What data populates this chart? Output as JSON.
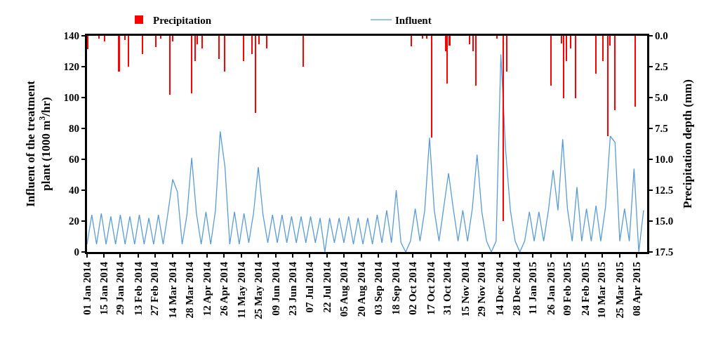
{
  "chart_data": {
    "type": "line",
    "ylabel": "Influent of the treatment plant (1000 m$^{3}$/hr)",
    "y2label": "Precipitation depth (mm)",
    "legend": "top",
    "grid": false,
    "marker": "none",
    "line_style": "solid",
    "xlim": [
      "2014-01-01",
      "2015-04-17"
    ],
    "ylim": [
      0,
      140
    ],
    "yticks": [
      0,
      20,
      40,
      60,
      80,
      100,
      120,
      140
    ],
    "y2lim": [
      17.5,
      0
    ],
    "y2ticks": [
      {
        "value": 0,
        "label": "0.0"
      },
      2.5,
      {
        "value": 5,
        "label": "5.0"
      },
      7.5,
      {
        "value": 10,
        "label": "10.0"
      },
      12.5,
      {
        "value": 15,
        "label": "15.0"
      },
      17.5
    ],
    "xticks": [
      {
        "value": "2014-01-01",
        "label": "01 Jan 2014"
      },
      {
        "value": "2014-01-15",
        "label": "15 Jan 2014"
      },
      {
        "value": "2014-01-29",
        "label": "29 Jan 2014"
      },
      {
        "value": "2014-02-13",
        "label": "13 Feb 2014"
      },
      {
        "value": "2014-02-27",
        "label": "27 Feb 2014"
      },
      {
        "value": "2014-03-14",
        "label": "14 Mar 2014"
      },
      {
        "value": "2014-03-28",
        "label": "28 Mar 2014"
      },
      {
        "value": "2014-04-12",
        "label": "12 Apr 2014"
      },
      {
        "value": "2014-04-26",
        "label": "26 Apr 2014"
      },
      {
        "value": "2014-05-11",
        "label": "11 May 2014"
      },
      {
        "value": "2014-05-25",
        "label": "25 May 2014"
      },
      {
        "value": "2014-06-09",
        "label": "09 Jun 2014"
      },
      {
        "value": "2014-06-23",
        "label": "23 Jun 2014"
      },
      {
        "value": "2014-07-07",
        "label": "07 Jul 2014"
      },
      {
        "value": "2014-07-22",
        "label": "22 Jul 2014"
      },
      {
        "value": "2014-08-05",
        "label": "05 Aug 2014"
      },
      {
        "value": "2014-08-20",
        "label": "20 Aug 2014"
      },
      {
        "value": "2014-09-03",
        "label": "03 Sep 2014"
      },
      {
        "value": "2014-09-18",
        "label": "18 Sep 2014"
      },
      {
        "value": "2014-10-02",
        "label": "02 Oct 2014"
      },
      {
        "value": "2014-10-17",
        "label": "17 Oct 2014"
      },
      {
        "value": "2014-10-31",
        "label": "31 Oct 2014"
      },
      {
        "value": "2014-11-15",
        "label": "15 Nov 2014"
      },
      {
        "value": "2014-11-29",
        "label": "29 Nov 2014"
      },
      {
        "value": "2014-12-14",
        "label": "14 Dec 2014"
      },
      {
        "value": "2014-12-28",
        "label": "28 Dec 2014"
      },
      {
        "value": "2015-01-11",
        "label": "11 Jan 2015"
      },
      {
        "value": "2015-01-26",
        "label": "26 Jan 2015"
      },
      {
        "value": "2015-02-09",
        "label": "09 Feb 2015"
      },
      {
        "value": "2015-02-24",
        "label": "24 Feb 2015"
      },
      {
        "value": "2015-03-10",
        "label": "10 Mar 2015"
      },
      {
        "value": "2015-03-25",
        "label": "25 Mar 2015"
      },
      {
        "value": "2015-04-08",
        "label": "08 Apr 2015"
      }
    ],
    "series": [
      {
        "name": "Precipitation",
        "type": "bar",
        "axis": "y2",
        "color": "#ff0000",
        "x": [
          "2014-01-02",
          "2014-01-11",
          "2014-01-16",
          "2014-01-28",
          "2014-02-02",
          "2014-02-05",
          "2014-02-17",
          "2014-02-28",
          "2014-03-04",
          "2014-03-12",
          "2014-03-14",
          "2014-03-30",
          "2014-04-02",
          "2014-04-04",
          "2014-04-08",
          "2014-04-22",
          "2014-04-27",
          "2014-05-13",
          "2014-05-20",
          "2014-05-23",
          "2014-05-26",
          "2014-06-01",
          "2014-07-02",
          "2014-10-01",
          "2014-10-10",
          "2014-10-14",
          "2014-10-18",
          "2014-10-30",
          "2014-10-31",
          "2014-11-02",
          "2014-11-19",
          "2014-11-22",
          "2014-11-24",
          "2014-12-12",
          "2014-12-17",
          "2014-12-20",
          "2015-01-26",
          "2015-02-04",
          "2015-02-06",
          "2015-02-08",
          "2015-02-12",
          "2015-02-16",
          "2015-03-05",
          "2015-03-11",
          "2015-03-15",
          "2015-03-17",
          "2015-03-21",
          "2015-04-07"
        ],
        "values": [
          1.1,
          0.2,
          0.45,
          2.9,
          0.35,
          2.5,
          1.5,
          0.9,
          0.25,
          4.75,
          0.45,
          4.65,
          2.05,
          0.7,
          1.05,
          1.85,
          2.9,
          2.05,
          1.5,
          6.25,
          0.7,
          1.05,
          2.5,
          0.85,
          0.25,
          0.25,
          8.25,
          1.25,
          3.85,
          0.8,
          0.7,
          1.25,
          4.05,
          0.25,
          15.0,
          2.9,
          4.05,
          0.65,
          5.05,
          2.05,
          1.05,
          5.05,
          3.05,
          2.05,
          8.1,
          0.8,
          6.05,
          5.75
        ]
      },
      {
        "name": "Influent",
        "axis": "y",
        "color": "#5b9bd5",
        "x": [
          "2014-01-01",
          "2014-01-05",
          "2014-01-09",
          "2014-01-13",
          "2014-01-17",
          "2014-01-21",
          "2014-01-25",
          "2014-01-29",
          "2014-02-02",
          "2014-02-06",
          "2014-02-10",
          "2014-02-14",
          "2014-02-18",
          "2014-02-22",
          "2014-02-26",
          "2014-03-02",
          "2014-03-06",
          "2014-03-10",
          "2014-03-14",
          "2014-03-18",
          "2014-03-22",
          "2014-03-26",
          "2014-03-30",
          "2014-04-03",
          "2014-04-07",
          "2014-04-11",
          "2014-04-15",
          "2014-04-19",
          "2014-04-23",
          "2014-04-27",
          "2014-05-01",
          "2014-05-05",
          "2014-05-09",
          "2014-05-13",
          "2014-05-17",
          "2014-05-21",
          "2014-05-25",
          "2014-05-29",
          "2014-06-02",
          "2014-06-06",
          "2014-06-10",
          "2014-06-14",
          "2014-06-18",
          "2014-06-22",
          "2014-06-26",
          "2014-06-30",
          "2014-07-04",
          "2014-07-08",
          "2014-07-12",
          "2014-07-16",
          "2014-07-20",
          "2014-07-24",
          "2014-07-28",
          "2014-08-01",
          "2014-08-05",
          "2014-08-09",
          "2014-08-13",
          "2014-08-17",
          "2014-08-21",
          "2014-08-25",
          "2014-08-29",
          "2014-09-02",
          "2014-09-06",
          "2014-09-10",
          "2014-09-14",
          "2014-09-18",
          "2014-09-22",
          "2014-09-26",
          "2014-09-30",
          "2014-10-04",
          "2014-10-08",
          "2014-10-12",
          "2014-10-16",
          "2014-10-20",
          "2014-10-24",
          "2014-10-28",
          "2014-11-01",
          "2014-11-05",
          "2014-11-09",
          "2014-11-13",
          "2014-11-17",
          "2014-11-21",
          "2014-11-25",
          "2014-11-29",
          "2014-12-03",
          "2014-12-07",
          "2014-12-11",
          "2014-12-15",
          "2014-12-19",
          "2014-12-23",
          "2014-12-27",
          "2014-12-31",
          "2015-01-04",
          "2015-01-08",
          "2015-01-12",
          "2015-01-16",
          "2015-01-20",
          "2015-01-24",
          "2015-01-28",
          "2015-02-01",
          "2015-02-05",
          "2015-02-09",
          "2015-02-13",
          "2015-02-17",
          "2015-02-21",
          "2015-02-25",
          "2015-03-01",
          "2015-03-05",
          "2015-03-09",
          "2015-03-13",
          "2015-03-17",
          "2015-03-21",
          "2015-03-25",
          "2015-03-29",
          "2015-04-02",
          "2015-04-06",
          "2015-04-10",
          "2015-04-14"
        ],
        "values": [
          5,
          24,
          5,
          25,
          5,
          23,
          5,
          24,
          5,
          23,
          5,
          24,
          5,
          22,
          5,
          24,
          5,
          25,
          47,
          39,
          5,
          24,
          61,
          25,
          5,
          26,
          5,
          27,
          78,
          55,
          5,
          26,
          5,
          25,
          6,
          25,
          55,
          24,
          6,
          24,
          6,
          24,
          6,
          23,
          6,
          23,
          6,
          23,
          6,
          22,
          0,
          22,
          6,
          22,
          6,
          23,
          5,
          22,
          5,
          22,
          5,
          24,
          6,
          27,
          6,
          40,
          6,
          0,
          7,
          28,
          7,
          27,
          74,
          27,
          7,
          29,
          51,
          28,
          7,
          27,
          7,
          28,
          63,
          26,
          7,
          0,
          7,
          128,
          66,
          27,
          7,
          0,
          7,
          26,
          7,
          26,
          7,
          27,
          53,
          27,
          73,
          28,
          7,
          42,
          7,
          28,
          7,
          30,
          7,
          29,
          75,
          71,
          7,
          28,
          7,
          54,
          0,
          27
        ]
      }
    ]
  }
}
